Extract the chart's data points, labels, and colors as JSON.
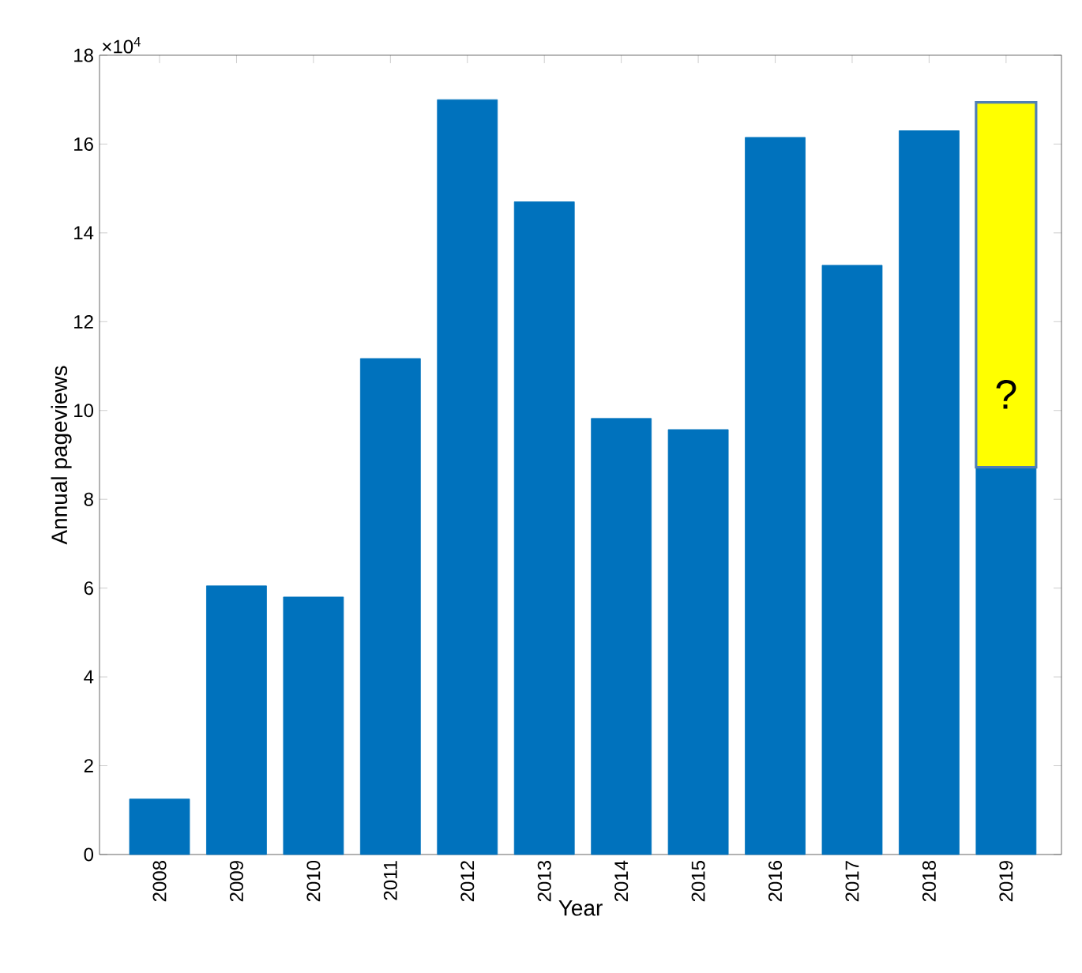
{
  "chart_data": {
    "type": "bar",
    "stacked": true,
    "xlabel": "Year",
    "ylabel": "Annual pageviews",
    "categories": [
      "2008",
      "2009",
      "2010",
      "2011",
      "2012",
      "2013",
      "2014",
      "2015",
      "2016",
      "2017",
      "2018",
      "2019"
    ],
    "series": [
      {
        "color": "#0072bd",
        "values": [
          1.25,
          6.05,
          5.8,
          11.17,
          17.0,
          14.7,
          9.82,
          9.57,
          16.15,
          13.27,
          16.3,
          8.72
        ]
      },
      {
        "color": "#ffff00",
        "values": [
          null,
          null,
          null,
          null,
          null,
          null,
          null,
          null,
          null,
          null,
          null,
          8.22
        ]
      }
    ],
    "ylim": [
      0,
      18
    ],
    "yticks": [
      0,
      2,
      4,
      6,
      8,
      10,
      12,
      14,
      16,
      18
    ],
    "grid": false,
    "annotations": [
      "×10$^{4}$",
      "?"
    ]
  }
}
